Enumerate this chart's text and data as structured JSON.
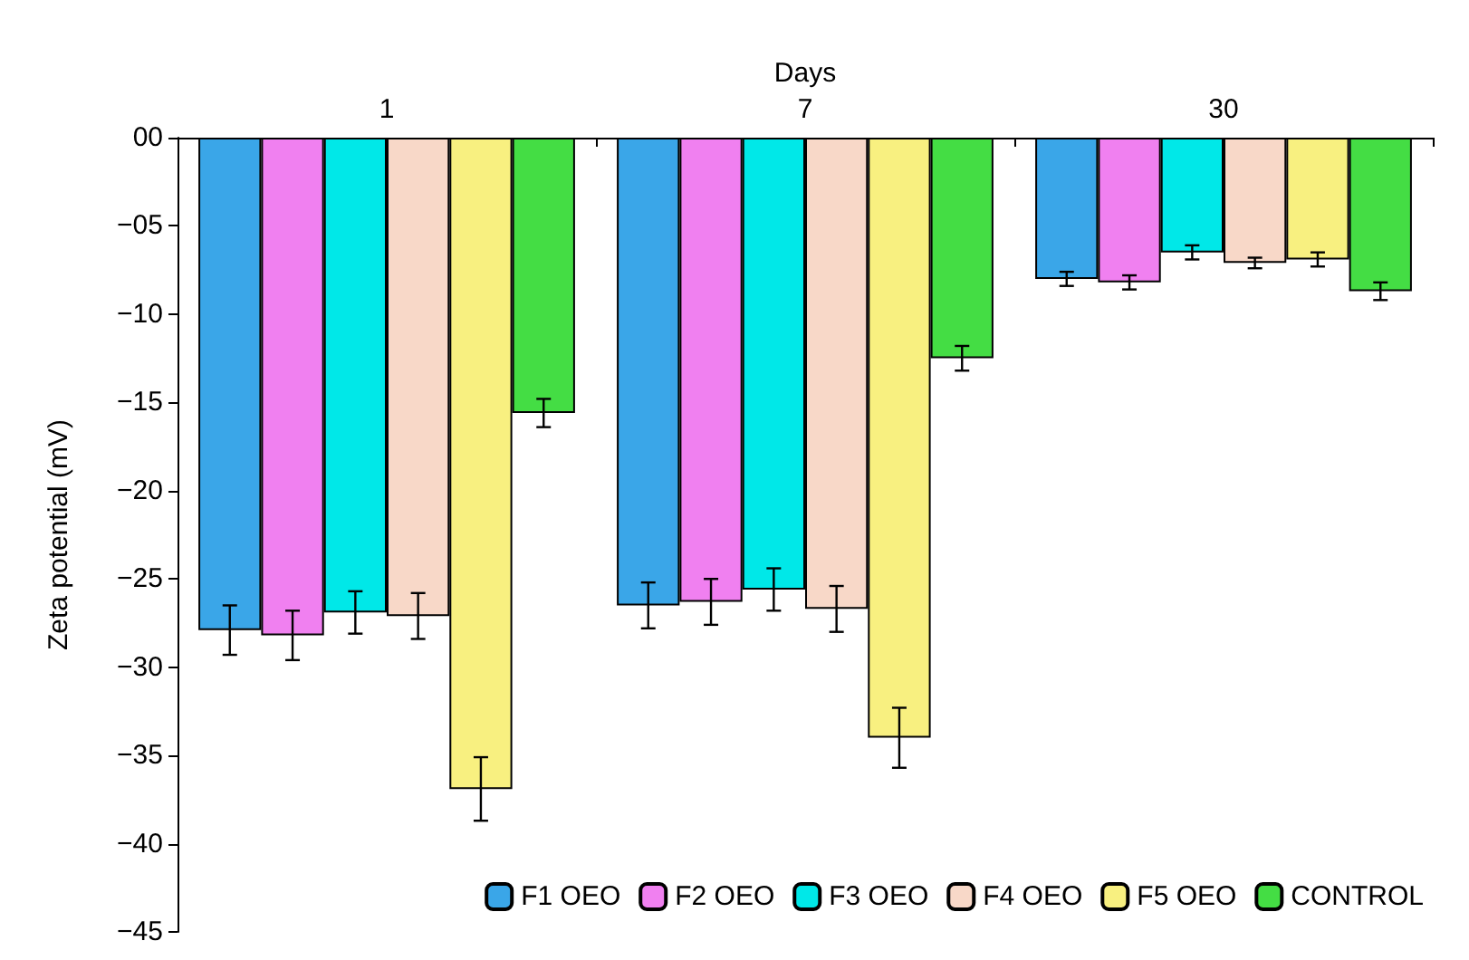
{
  "chart_data": {
    "type": "bar",
    "xlabel": "Days",
    "ylabel": "Zeta potential (mV)",
    "categories": [
      "1",
      "7",
      "30"
    ],
    "series": [
      {
        "name": "F1 OEO",
        "color": "#3aa6e8",
        "values": [
          -27.9,
          -26.5,
          -8.0
        ],
        "errors": [
          1.4,
          1.3,
          0.4
        ]
      },
      {
        "name": "F2 OEO",
        "color": "#f080f0",
        "values": [
          -28.2,
          -26.3,
          -8.2
        ],
        "errors": [
          1.4,
          1.3,
          0.4
        ]
      },
      {
        "name": "F3 OEO",
        "color": "#00e8e8",
        "values": [
          -26.9,
          -25.6,
          -6.5
        ],
        "errors": [
          1.2,
          1.2,
          0.4
        ]
      },
      {
        "name": "F4 OEO",
        "color": "#f8d8c8",
        "values": [
          -27.1,
          -26.7,
          -7.1
        ],
        "errors": [
          1.3,
          1.3,
          0.3
        ]
      },
      {
        "name": "F5 OEO",
        "color": "#f8f080",
        "values": [
          -36.9,
          -34.0,
          -6.9
        ],
        "errors": [
          1.8,
          1.7,
          0.4
        ]
      },
      {
        "name": "CONTROL",
        "color": "#44dd44",
        "values": [
          -15.6,
          -12.5,
          -8.7
        ],
        "errors": [
          0.8,
          0.7,
          0.5
        ]
      }
    ],
    "ylim": [
      -45,
      0
    ],
    "yticks": [
      {
        "value": 0,
        "label": "00"
      },
      {
        "value": -5,
        "label": "−05"
      },
      {
        "value": -10,
        "label": "−10"
      },
      {
        "value": -15,
        "label": "−15"
      },
      {
        "value": -20,
        "label": "−20"
      },
      {
        "value": -25,
        "label": "−25"
      },
      {
        "value": -30,
        "label": "−30"
      },
      {
        "value": -35,
        "label": "−35"
      },
      {
        "value": -40,
        "label": "−40"
      },
      {
        "value": -45,
        "label": "−45"
      }
    ],
    "legend": "bottom right",
    "grid": false
  }
}
